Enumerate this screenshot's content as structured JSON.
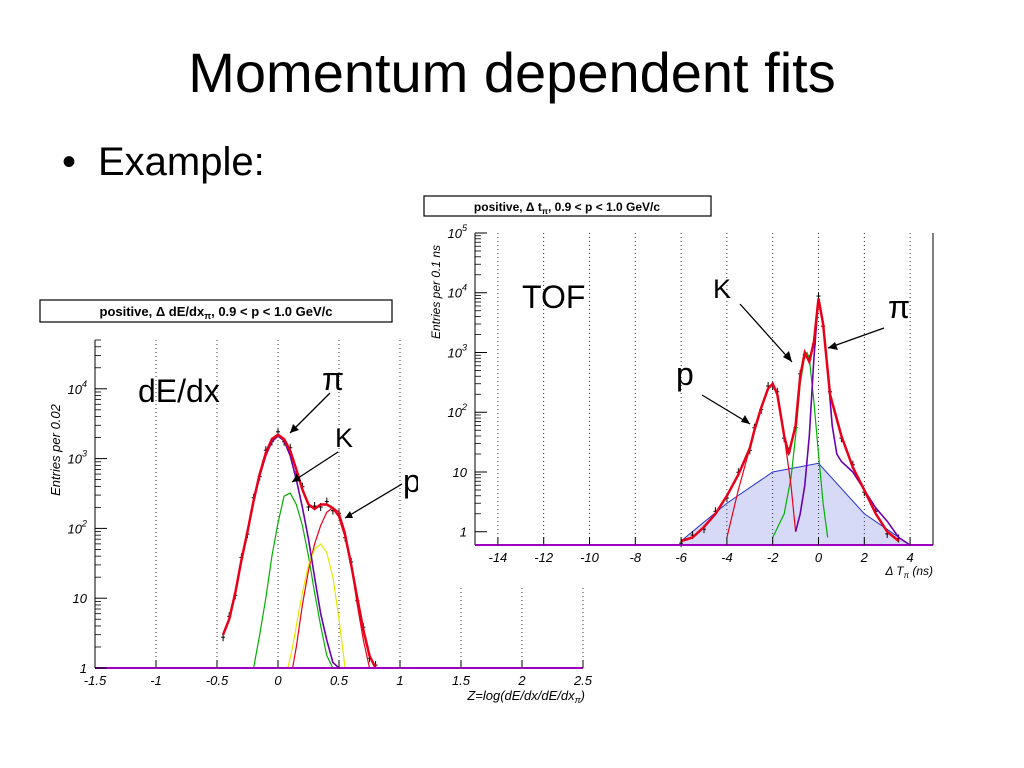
{
  "slide": {
    "title": "Momentum dependent fits",
    "bullet_symbol": "•",
    "bullet_text": "Example:"
  },
  "colors": {
    "total_fit": "#e8001a",
    "pion": "#6a00b0",
    "kaon": "#00b000",
    "kaon_band": "#2233cc",
    "proton": "#e8001a",
    "proton_dedx": "#e8e800",
    "axis_baseline": "#a000c0"
  },
  "chart_data": [
    {
      "type": "line",
      "scale": "log-y",
      "box_title": "positive, Δ dE/dx",
      "box_title_sub": "π",
      "box_title_rest": ", 0.9 < p < 1.0 GeV/c",
      "ylabel": "Entries per 0.02",
      "xlabel": "Z=log(dE/dx/dE/dx",
      "xlabel_sub": "π",
      "xlabel_end": ")",
      "xlim": [
        -1.5,
        2.5
      ],
      "ylim": [
        1,
        50000
      ],
      "grid": "vertical dotted",
      "xticks": [
        "-1.5",
        "-1",
        "-0.5",
        "0",
        "0.5",
        "1",
        "1.5",
        "2",
        "2.5"
      ],
      "yticks": [
        {
          "v": 1,
          "base": "1",
          "exp": ""
        },
        {
          "v": 10,
          "base": "10",
          "exp": ""
        },
        {
          "v": 100,
          "base": "10",
          "exp": "2"
        },
        {
          "v": 1000,
          "base": "10",
          "exp": "3"
        },
        {
          "v": 10000,
          "base": "10",
          "exp": "4"
        }
      ],
      "annotations": {
        "label": "dE/dx",
        "pion": "π",
        "kaon": "K",
        "proton": "p"
      },
      "series": [
        {
          "role": "total",
          "x": [
            -0.45,
            -0.4,
            -0.35,
            -0.3,
            -0.25,
            -0.2,
            -0.15,
            -0.1,
            -0.05,
            0,
            0.05,
            0.1,
            0.15,
            0.2,
            0.25,
            0.3,
            0.35,
            0.4,
            0.45,
            0.5,
            0.55,
            0.6,
            0.65,
            0.7,
            0.75,
            0.8
          ],
          "y": [
            3,
            5,
            12,
            35,
            90,
            250,
            600,
            1200,
            1900,
            2200,
            1900,
            1300,
            700,
            360,
            220,
            190,
            220,
            220,
            195,
            150,
            80,
            30,
            10,
            3.5,
            1.5,
            1
          ]
        },
        {
          "role": "pion",
          "x": [
            -0.45,
            -0.4,
            -0.35,
            -0.3,
            -0.25,
            -0.2,
            -0.15,
            -0.1,
            -0.05,
            0,
            0.05,
            0.1,
            0.15,
            0.2,
            0.25,
            0.3,
            0.35,
            0.4,
            0.45,
            0.5
          ],
          "y": [
            3,
            5,
            12,
            35,
            90,
            240,
            560,
            1100,
            1750,
            2100,
            1800,
            1100,
            500,
            200,
            70,
            20,
            6,
            2.5,
            1.2,
            1
          ]
        },
        {
          "role": "kaon",
          "x": [
            -0.2,
            -0.15,
            -0.1,
            -0.05,
            0,
            0.05,
            0.1,
            0.15,
            0.2,
            0.25,
            0.3,
            0.35,
            0.4,
            0.45
          ],
          "y": [
            1,
            3,
            10,
            40,
            120,
            290,
            320,
            220,
            110,
            40,
            12,
            4,
            1.5,
            1
          ]
        },
        {
          "role": "proton",
          "x": [
            0.12,
            0.15,
            0.2,
            0.25,
            0.3,
            0.35,
            0.4,
            0.45,
            0.5,
            0.55,
            0.6,
            0.65,
            0.7,
            0.75
          ],
          "y": [
            1,
            2,
            8,
            25,
            60,
            110,
            170,
            200,
            170,
            90,
            30,
            8,
            2.5,
            1
          ]
        },
        {
          "role": "proton2",
          "x": [
            0.08,
            0.12,
            0.16,
            0.2,
            0.25,
            0.3,
            0.35,
            0.4,
            0.45,
            0.5,
            0.55
          ],
          "y": [
            1,
            2,
            5,
            12,
            30,
            50,
            60,
            45,
            20,
            5,
            1
          ]
        }
      ]
    },
    {
      "type": "line",
      "scale": "log-y",
      "box_title": "positive, Δ t",
      "box_title_sub": "π",
      "box_title_rest": ", 0.9 < p < 1.0 GeV/c",
      "ylabel": "Entries per 0.1 ns",
      "xlabel": "Δ T",
      "xlabel_sub": "π",
      "xlabel_end": "  (ns)",
      "xlim": [
        -15,
        5
      ],
      "ylim": [
        0.6,
        100000
      ],
      "grid": "vertical dotted",
      "xticks": [
        "-14",
        "-12",
        "-10",
        "-8",
        "-6",
        "-4",
        "-2",
        "0",
        "2",
        "4"
      ],
      "yticks": [
        {
          "v": 1,
          "base": "1",
          "exp": ""
        },
        {
          "v": 10,
          "base": "10",
          "exp": ""
        },
        {
          "v": 100,
          "base": "10",
          "exp": "2"
        },
        {
          "v": 1000,
          "base": "10",
          "exp": "3"
        },
        {
          "v": 10000,
          "base": "10",
          "exp": "4"
        },
        {
          "v": 100000,
          "base": "10",
          "exp": "5"
        }
      ],
      "annotations": {
        "label": "TOF",
        "pion": "π",
        "kaon": "K",
        "proton": "p"
      },
      "series": [
        {
          "role": "total",
          "x": [
            -6,
            -5.5,
            -5,
            -4.5,
            -4,
            -3.5,
            -3,
            -2.8,
            -2.5,
            -2.2,
            -2,
            -1.8,
            -1.5,
            -1.3,
            -1,
            -0.8,
            -0.6,
            -0.4,
            -0.2,
            0,
            0.2,
            0.5,
            1,
            1.5,
            2,
            2.5,
            3,
            3.5
          ],
          "y": [
            0.7,
            0.8,
            1.2,
            2,
            4,
            9,
            25,
            50,
            120,
            250,
            300,
            200,
            40,
            20,
            60,
            400,
            1000,
            700,
            1500,
            8000,
            3000,
            200,
            40,
            12,
            5,
            2,
            1,
            0.7
          ]
        },
        {
          "role": "pion",
          "x": [
            -1,
            -0.8,
            -0.6,
            -0.4,
            -0.2,
            0,
            0.2,
            0.4,
            0.6,
            0.8,
            1,
            1.5,
            2,
            2.5,
            3,
            3.5,
            4
          ],
          "y": [
            1,
            2,
            6,
            40,
            800,
            8000,
            3000,
            500,
            60,
            20,
            15,
            10,
            5,
            2.5,
            1.5,
            0.8,
            0.6
          ]
        },
        {
          "role": "kaon",
          "x": [
            -2,
            -1.5,
            -1.2,
            -1,
            -0.8,
            -0.6,
            -0.5,
            -0.4,
            -0.2,
            0,
            0.2,
            0.4
          ],
          "y": [
            0.8,
            2,
            8,
            40,
            300,
            900,
            1000,
            800,
            150,
            20,
            3,
            0.8
          ]
        },
        {
          "role": "proton",
          "x": [
            -4,
            -3.5,
            -3,
            -2.8,
            -2.5,
            -2.2,
            -2,
            -1.8,
            -1.5,
            -1.2,
            -1
          ],
          "y": [
            0.8,
            5,
            25,
            50,
            120,
            250,
            300,
            200,
            40,
            6,
            1
          ]
        },
        {
          "role": "kaon_band",
          "x": [
            -6,
            -4,
            -2,
            0,
            2,
            4
          ],
          "y": [
            0.7,
            3,
            10,
            14,
            2,
            0.6
          ]
        }
      ]
    }
  ]
}
